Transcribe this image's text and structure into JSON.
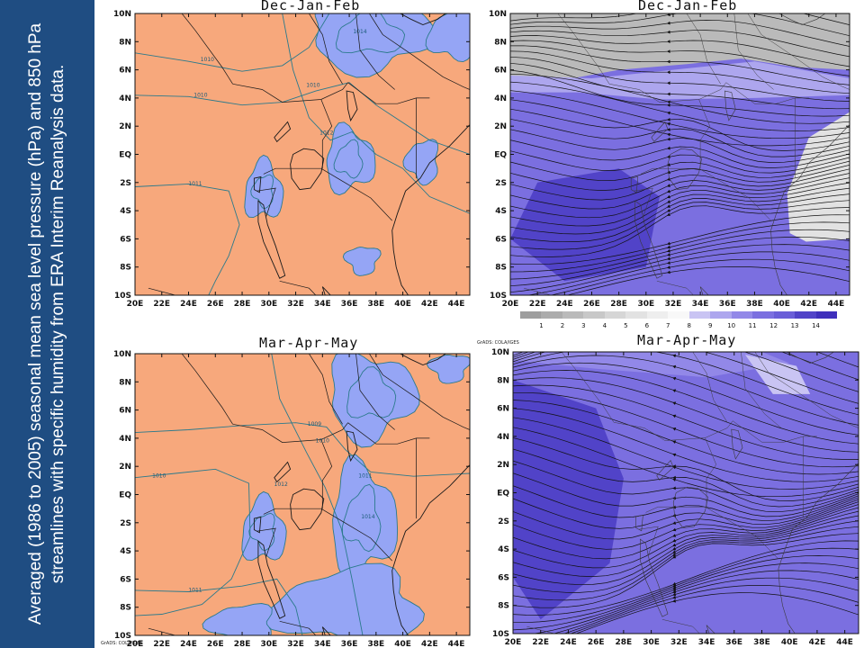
{
  "caption": "Averaged (1986 to 2005) seasonal mean sea level pressure (hPa) and 850 hPa streamlines with specific humidity from ERA Interim Reanalysis data.",
  "credit": "GrADS: COLA/IGES",
  "colors": {
    "sidebar": "#1f4d82",
    "slp_fill": "#f7a87c",
    "slp_low_fill": "#95a5f5",
    "contour": "#2b7a8c",
    "streamline": "#111111",
    "border": "#1a1a1a"
  },
  "panels": {
    "slp_djf": {
      "title": "Dec-Jan-Feb"
    },
    "hum_djf": {
      "title": "Dec-Jan-Feb"
    },
    "slp_mam": {
      "title": "Mar-Apr-May"
    },
    "hum_mam": {
      "title": "Mar-Apr-May"
    }
  },
  "chart_data": [
    {
      "type": "heatmap",
      "id": "slp_djf",
      "title": "Dec-Jan-Feb",
      "variable": "mean sea level pressure (hPa)",
      "x_ticks": [
        "20E",
        "22E",
        "24E",
        "26E",
        "28E",
        "30E",
        "32E",
        "34E",
        "36E",
        "38E",
        "40E",
        "42E",
        "44E"
      ],
      "y_ticks": [
        "10N",
        "8N",
        "6N",
        "4N",
        "2N",
        "EQ",
        "2S",
        "4S",
        "6S",
        "8S",
        "10S"
      ],
      "xlim": [
        20,
        45
      ],
      "ylim": [
        -10,
        10
      ],
      "contour_labels": [
        {
          "text": "1014",
          "lon": 36.8,
          "lat": 8.6
        },
        {
          "text": "1010",
          "lon": 25.4,
          "lat": 6.6
        },
        {
          "text": "1010",
          "lon": 24.9,
          "lat": 4.1
        },
        {
          "text": "1010",
          "lon": 33.3,
          "lat": 4.8
        },
        {
          "text": "1012",
          "lon": 34.3,
          "lat": 1.4
        },
        {
          "text": "1011",
          "lon": 24.5,
          "lat": -2.2
        }
      ]
    },
    {
      "type": "heatmap",
      "id": "hum_djf",
      "title": "Dec-Jan-Feb",
      "variable": "850 hPa specific humidity with streamlines",
      "x_ticks": [
        "20E",
        "22E",
        "24E",
        "26E",
        "28E",
        "30E",
        "32E",
        "34E",
        "36E",
        "38E",
        "40E",
        "42E",
        "44E"
      ],
      "y_ticks": [
        "10N",
        "8N",
        "6N",
        "4N",
        "2N",
        "EQ",
        "2S",
        "4S",
        "6S",
        "8S",
        "10S"
      ],
      "xlim": [
        20,
        45
      ],
      "ylim": [
        -10,
        10
      ]
    },
    {
      "type": "heatmap",
      "id": "slp_mam",
      "title": "Mar-Apr-May",
      "variable": "mean sea level pressure (hPa)",
      "x_ticks": [
        "20E",
        "22E",
        "24E",
        "26E",
        "28E",
        "30E",
        "32E",
        "34E",
        "36E",
        "38E",
        "40E",
        "42E",
        "44E"
      ],
      "y_ticks": [
        "10N",
        "8N",
        "6N",
        "4N",
        "2N",
        "EQ",
        "2S",
        "4S",
        "6S",
        "8S",
        "10S"
      ],
      "xlim": [
        20,
        45
      ],
      "ylim": [
        -10,
        10
      ],
      "contour_labels": [
        {
          "text": "1009",
          "lon": 33.4,
          "lat": 4.9
        },
        {
          "text": "1010",
          "lon": 34.0,
          "lat": 3.7
        },
        {
          "text": "1010",
          "lon": 21.8,
          "lat": 1.2
        },
        {
          "text": "1011",
          "lon": 37.2,
          "lat": 1.2
        },
        {
          "text": "1012",
          "lon": 30.9,
          "lat": 0.6
        },
        {
          "text": "1014",
          "lon": 37.4,
          "lat": -1.7
        },
        {
          "text": "1011",
          "lon": 24.5,
          "lat": -6.9
        }
      ]
    },
    {
      "type": "heatmap",
      "id": "hum_mam",
      "title": "Mar-Apr-May",
      "variable": "850 hPa specific humidity with streamlines",
      "x_ticks": [
        "20E",
        "22E",
        "24E",
        "26E",
        "28E",
        "30E",
        "32E",
        "34E",
        "36E",
        "38E",
        "40E",
        "42E",
        "44E"
      ],
      "y_ticks": [
        "10N",
        "8N",
        "6N",
        "4N",
        "2N",
        "EQ",
        "2S",
        "4S",
        "6S",
        "8S",
        "10S"
      ],
      "xlim": [
        20,
        45
      ],
      "ylim": [
        -10,
        10
      ]
    }
  ],
  "colorbar": {
    "labels": [
      "1",
      "2",
      "3",
      "4",
      "5",
      "6",
      "7",
      "8",
      "9",
      "10",
      "11",
      "12",
      "13",
      "14"
    ],
    "colors": [
      "#9e9e9e",
      "#acacac",
      "#bababa",
      "#c8c8c8",
      "#d6d6d6",
      "#e2e2e2",
      "#eeeeee",
      "#f8f8f8",
      "#c9c4f3",
      "#ada6ee",
      "#9288e8",
      "#7b6fe0",
      "#6a5ed8",
      "#5143c8",
      "#3f2fbb"
    ]
  }
}
